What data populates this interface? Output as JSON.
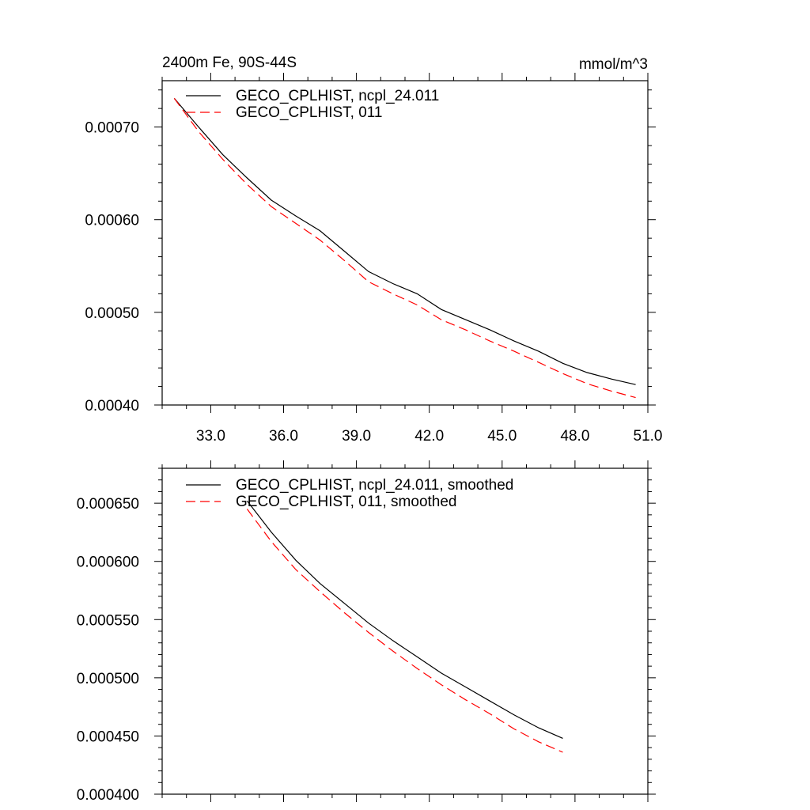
{
  "chart_data": [
    {
      "type": "line",
      "title": "2400m Fe, 90S-44S",
      "units": "mmol/m^3",
      "xlim": [
        31.0,
        51.0
      ],
      "ylim": [
        0.0004,
        0.00075
      ],
      "xticks": [
        33.0,
        36.0,
        39.0,
        42.0,
        45.0,
        48.0,
        51.0
      ],
      "xtick_labels": [
        "33.0",
        "36.0",
        "39.0",
        "42.0",
        "45.0",
        "48.0",
        "51.0"
      ],
      "yticks": [
        0.0004,
        0.0005,
        0.0006,
        0.0007
      ],
      "ytick_labels": [
        "0.00040",
        "0.00050",
        "0.00060",
        "0.00070"
      ],
      "legend_position": "top-left",
      "series": [
        {
          "name": "GECO_CPLHIST, ncpl_24.011",
          "color": "#000000",
          "dash": "solid",
          "x": [
            31.5,
            32.5,
            33.5,
            34.5,
            35.5,
            36.5,
            37.5,
            38.5,
            39.5,
            40.5,
            41.5,
            42.5,
            43.5,
            44.5,
            45.5,
            46.5,
            47.5,
            48.5,
            49.5,
            50.5
          ],
          "y": [
            0.000731,
            0.0007,
            0.00067,
            0.000645,
            0.000621,
            0.000604,
            0.000588,
            0.000566,
            0.000544,
            0.000531,
            0.00052,
            0.000503,
            0.000492,
            0.000481,
            0.000469,
            0.000458,
            0.000445,
            0.000435,
            0.000428,
            0.000422
          ]
        },
        {
          "name": "GECO_CPLHIST, 011",
          "color": "#ff0000",
          "dash": "dashed",
          "x": [
            31.5,
            32.5,
            33.5,
            34.5,
            35.5,
            36.5,
            37.5,
            38.5,
            39.5,
            40.5,
            41.5,
            42.5,
            43.5,
            44.5,
            45.5,
            46.5,
            47.5,
            48.5,
            49.5,
            50.5
          ],
          "y": [
            0.000731,
            0.000695,
            0.000665,
            0.000638,
            0.000614,
            0.000596,
            0.000578,
            0.000556,
            0.000533,
            0.00052,
            0.000508,
            0.000492,
            0.000481,
            0.000469,
            0.000458,
            0.000446,
            0.000434,
            0.000423,
            0.000415,
            0.000408
          ]
        }
      ]
    },
    {
      "type": "line",
      "xlim": [
        31.0,
        51.0
      ],
      "ylim": [
        0.0004,
        0.00068
      ],
      "xticks": [
        33.0,
        36.0,
        39.0,
        42.0,
        45.0,
        48.0,
        51.0
      ],
      "yticks": [
        0.0004,
        0.00045,
        0.0005,
        0.00055,
        0.0006,
        0.00065
      ],
      "ytick_labels": [
        "0.000400",
        "0.000450",
        "0.000500",
        "0.000550",
        "0.000600",
        "0.000650"
      ],
      "legend_position": "top-left",
      "series": [
        {
          "name": "GECO_CPLHIST, ncpl_24.011, smoothed",
          "color": "#000000",
          "dash": "solid",
          "x": [
            34.5,
            35.5,
            36.5,
            37.5,
            38.5,
            39.5,
            40.5,
            41.5,
            42.5,
            43.5,
            44.5,
            45.5,
            46.5,
            47.5
          ],
          "y": [
            0.000652,
            0.000625,
            0.000601,
            0.000581,
            0.000564,
            0.000547,
            0.000532,
            0.000518,
            0.000504,
            0.000492,
            0.00048,
            0.000468,
            0.000457,
            0.000448
          ]
        },
        {
          "name": "GECO_CPLHIST, 011, smoothed",
          "color": "#ff0000",
          "dash": "dashed",
          "x": [
            34.5,
            35.5,
            36.5,
            37.5,
            38.5,
            39.5,
            40.5,
            41.5,
            42.5,
            43.5,
            44.5,
            45.5,
            46.5,
            47.5
          ],
          "y": [
            0.000645,
            0.000617,
            0.000593,
            0.000574,
            0.000556,
            0.000539,
            0.000523,
            0.000508,
            0.000494,
            0.000481,
            0.000469,
            0.000456,
            0.000445,
            0.000436
          ]
        }
      ]
    }
  ]
}
